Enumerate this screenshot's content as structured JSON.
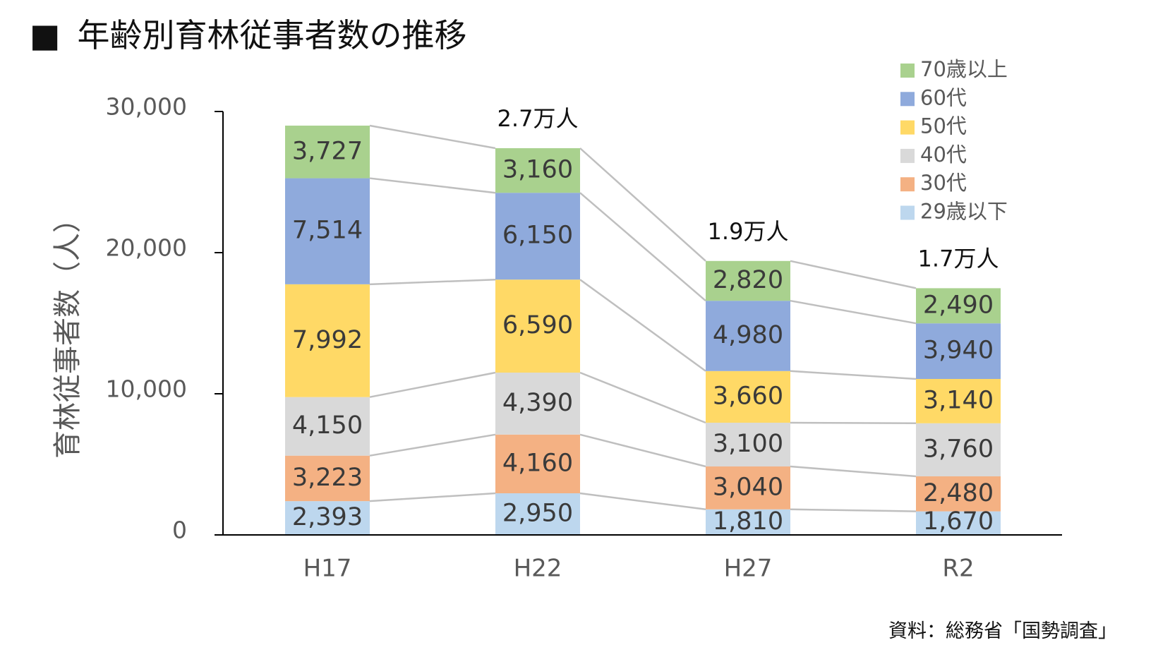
{
  "title": {
    "marker": "■",
    "text": "年齢別育林従事者数の推移"
  },
  "source": "資料：総務省「国勢調査」",
  "chart_data": {
    "type": "bar",
    "stacked": true,
    "categories": [
      "H17",
      "H22",
      "H27",
      "R2"
    ],
    "ylabel": "育林従事者数（人）",
    "ylim": [
      0,
      30000
    ],
    "yticks": [
      0,
      10000,
      20000,
      30000
    ],
    "ytick_labels": [
      "0",
      "10,000",
      "20,000",
      "30,000"
    ],
    "grid": false,
    "connector_lines": true,
    "legend_position": "top-right",
    "series": [
      {
        "name": "29歳以下",
        "color": "#bdd7ee",
        "values": [
          2393,
          2950,
          1810,
          1670
        ],
        "labels": [
          "2,393",
          "2,950",
          "1,810",
          "1,670"
        ]
      },
      {
        "name": "30代",
        "color": "#f4b183",
        "values": [
          3223,
          4160,
          3040,
          2480
        ],
        "labels": [
          "3,223",
          "4,160",
          "3,040",
          "2,480"
        ]
      },
      {
        "name": "40代",
        "color": "#d9d9d9",
        "values": [
          4150,
          4390,
          3100,
          3760
        ],
        "labels": [
          "4,150",
          "4,390",
          "3,100",
          "3,760"
        ]
      },
      {
        "name": "50代",
        "color": "#ffd966",
        "values": [
          7992,
          6590,
          3660,
          3140
        ],
        "labels": [
          "7,992",
          "6,590",
          "3,660",
          "3,140"
        ]
      },
      {
        "name": "60代",
        "color": "#8faadc",
        "values": [
          7514,
          6150,
          4980,
          3940
        ],
        "labels": [
          "7,514",
          "6,150",
          "4,980",
          "3,940"
        ]
      },
      {
        "name": "70歳以上",
        "color": "#a9d18e",
        "values": [
          3727,
          3160,
          2820,
          2490
        ],
        "labels": [
          "3,727",
          "3,160",
          "2,820",
          "2,490"
        ]
      }
    ],
    "totals": [
      "",
      "2.7万人",
      "1.9万人",
      "1.7万人"
    ],
    "legend_order": [
      "70歳以上",
      "60代",
      "50代",
      "40代",
      "30代",
      "29歳以下"
    ]
  }
}
